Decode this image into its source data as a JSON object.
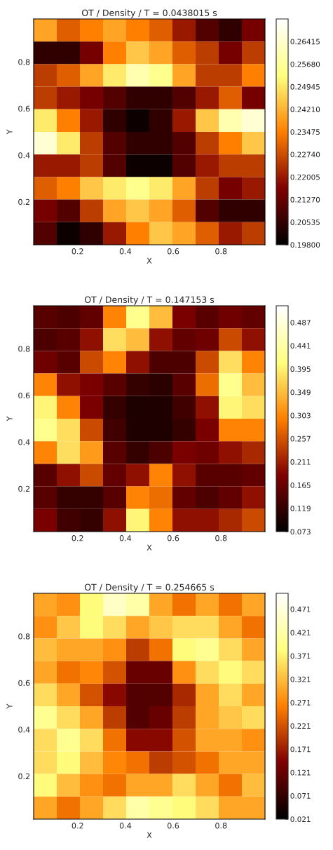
{
  "chart_data": [
    {
      "type": "heatmap",
      "title": "OT / Density / T = 0.0438015 s",
      "xlabel": "X",
      "ylabel": "Y",
      "x": [
        0.0644,
        0.1612,
        0.258,
        0.3548,
        0.4516,
        0.5484,
        0.6452,
        0.742,
        0.8388,
        0.9356
      ],
      "y": [
        0.9356,
        0.8388,
        0.742,
        0.6452,
        0.5484,
        0.4516,
        0.3548,
        0.258,
        0.1612,
        0.0644
      ],
      "xlim": [
        0.016,
        0.984
      ],
      "ylim": [
        0.016,
        0.984
      ],
      "xticks": [
        0.2,
        0.4,
        0.6,
        0.8
      ],
      "yticks": [
        0.2,
        0.4,
        0.6,
        0.8
      ],
      "clim": [
        0.198,
        0.2715
      ],
      "cticks": [
        {
          "value": 0.198,
          "label": "0.19800"
        },
        {
          "value": 0.20535,
          "label": "0.20535"
        },
        {
          "value": 0.2127,
          "label": "0.21270"
        },
        {
          "value": 0.22005,
          "label": "0.22005"
        },
        {
          "value": 0.2274,
          "label": "0.22740"
        },
        {
          "value": 0.23475,
          "label": "0.23475"
        },
        {
          "value": 0.2421,
          "label": "0.24210"
        },
        {
          "value": 0.24945,
          "label": "0.24945"
        },
        {
          "value": 0.2568,
          "label": "0.25680"
        },
        {
          "value": 0.26415,
          "label": "0.26415"
        }
      ],
      "cells": [
        [
          0.24,
          0.23,
          0.235,
          0.24,
          0.235,
          0.23,
          0.22,
          0.21,
          0.205,
          0.215
        ],
        [
          0.205,
          0.205,
          0.215,
          0.235,
          0.245,
          0.24,
          0.23,
          0.225,
          0.215,
          0.225
        ],
        [
          0.225,
          0.23,
          0.24,
          0.25,
          0.26,
          0.255,
          0.24,
          0.225,
          0.225,
          0.235
        ],
        [
          0.225,
          0.22,
          0.215,
          0.21,
          0.205,
          0.205,
          0.21,
          0.22,
          0.23,
          0.215
        ],
        [
          0.25,
          0.235,
          0.22,
          0.205,
          0.2,
          0.205,
          0.22,
          0.245,
          0.26,
          0.265
        ],
        [
          0.265,
          0.25,
          0.225,
          0.21,
          0.205,
          0.205,
          0.21,
          0.225,
          0.235,
          0.245
        ],
        [
          0.22,
          0.22,
          0.225,
          0.21,
          0.2,
          0.2,
          0.21,
          0.22,
          0.225,
          0.225
        ],
        [
          0.23,
          0.235,
          0.245,
          0.25,
          0.255,
          0.25,
          0.24,
          0.225,
          0.215,
          0.22
        ],
        [
          0.215,
          0.21,
          0.225,
          0.24,
          0.245,
          0.24,
          0.23,
          0.21,
          0.205,
          0.205
        ],
        [
          0.21,
          0.2,
          0.205,
          0.22,
          0.235,
          0.245,
          0.24,
          0.23,
          0.22,
          0.225
        ]
      ]
    },
    {
      "type": "heatmap",
      "title": "OT / Density / T = 0.147153 s",
      "xlabel": "X",
      "ylabel": "Y",
      "x": [
        0.0644,
        0.1612,
        0.258,
        0.3548,
        0.4516,
        0.5484,
        0.6452,
        0.742,
        0.8388,
        0.9356
      ],
      "y": [
        0.9356,
        0.8388,
        0.742,
        0.6452,
        0.5484,
        0.4516,
        0.3548,
        0.258,
        0.1612,
        0.0644
      ],
      "xlim": [
        0.016,
        0.984
      ],
      "ylim": [
        0.016,
        0.984
      ],
      "xticks": [
        0.2,
        0.4,
        0.6,
        0.8
      ],
      "yticks": [
        0.2,
        0.4,
        0.6,
        0.8
      ],
      "clim": [
        0.073,
        0.52
      ],
      "cticks": [
        0.073,
        0.119,
        0.165,
        0.211,
        0.257,
        0.303,
        0.349,
        0.395,
        0.441,
        0.487
      ],
      "cells": [
        [
          0.15,
          0.14,
          0.16,
          0.3,
          0.42,
          0.35,
          0.18,
          0.15,
          0.17,
          0.16
        ],
        [
          0.14,
          0.15,
          0.2,
          0.38,
          0.35,
          0.2,
          0.16,
          0.17,
          0.25,
          0.2
        ],
        [
          0.17,
          0.15,
          0.25,
          0.3,
          0.2,
          0.14,
          0.14,
          0.25,
          0.38,
          0.3
        ],
        [
          0.3,
          0.2,
          0.18,
          0.15,
          0.12,
          0.11,
          0.15,
          0.28,
          0.42,
          0.35
        ],
        [
          0.4,
          0.3,
          0.18,
          0.12,
          0.1,
          0.1,
          0.13,
          0.2,
          0.4,
          0.38
        ],
        [
          0.42,
          0.38,
          0.25,
          0.13,
          0.1,
          0.1,
          0.12,
          0.18,
          0.3,
          0.3
        ],
        [
          0.3,
          0.38,
          0.32,
          0.15,
          0.12,
          0.14,
          0.18,
          0.17,
          0.2,
          0.22
        ],
        [
          0.15,
          0.2,
          0.25,
          0.16,
          0.2,
          0.3,
          0.2,
          0.15,
          0.15,
          0.16
        ],
        [
          0.15,
          0.12,
          0.12,
          0.15,
          0.3,
          0.28,
          0.16,
          0.14,
          0.16,
          0.2
        ],
        [
          0.18,
          0.13,
          0.12,
          0.2,
          0.4,
          0.3,
          0.2,
          0.2,
          0.22,
          0.25
        ]
      ]
    },
    {
      "type": "heatmap",
      "title": "OT / Density / T = 0.254665 s",
      "xlabel": "X",
      "ylabel": "Y",
      "x": [
        0.0644,
        0.1612,
        0.258,
        0.3548,
        0.4516,
        0.5484,
        0.6452,
        0.742,
        0.8388,
        0.9356
      ],
      "y": [
        0.9356,
        0.8388,
        0.742,
        0.6452,
        0.5484,
        0.4516,
        0.3548,
        0.258,
        0.1612,
        0.0644
      ],
      "xlim": [
        0.016,
        0.984
      ],
      "ylim": [
        0.016,
        0.984
      ],
      "xticks": [
        0.2,
        0.4,
        0.6,
        0.8
      ],
      "yticks": [
        0.2,
        0.4,
        0.6,
        0.8
      ],
      "clim": [
        0.021,
        0.505
      ],
      "cticks": [
        0.021,
        0.071,
        0.121,
        0.171,
        0.221,
        0.271,
        0.321,
        0.371,
        0.421,
        0.471
      ],
      "cells": [
        [
          0.3,
          0.28,
          0.38,
          0.45,
          0.42,
          0.3,
          0.25,
          0.3,
          0.25,
          0.3
        ],
        [
          0.28,
          0.33,
          0.38,
          0.35,
          0.3,
          0.33,
          0.35,
          0.35,
          0.3,
          0.25
        ],
        [
          0.32,
          0.3,
          0.3,
          0.28,
          0.2,
          0.25,
          0.38,
          0.4,
          0.35,
          0.3
        ],
        [
          0.3,
          0.25,
          0.27,
          0.22,
          0.12,
          0.12,
          0.28,
          0.35,
          0.38,
          0.35
        ],
        [
          0.35,
          0.3,
          0.22,
          0.15,
          0.1,
          0.1,
          0.18,
          0.3,
          0.35,
          0.3
        ],
        [
          0.4,
          0.35,
          0.3,
          0.2,
          0.1,
          0.12,
          0.2,
          0.3,
          0.33,
          0.35
        ],
        [
          0.35,
          0.4,
          0.35,
          0.25,
          0.15,
          0.15,
          0.22,
          0.3,
          0.3,
          0.28
        ],
        [
          0.35,
          0.38,
          0.32,
          0.27,
          0.25,
          0.2,
          0.22,
          0.25,
          0.3,
          0.3
        ],
        [
          0.38,
          0.32,
          0.28,
          0.25,
          0.3,
          0.3,
          0.35,
          0.3,
          0.25,
          0.32
        ],
        [
          0.3,
          0.25,
          0.3,
          0.35,
          0.42,
          0.4,
          0.38,
          0.35,
          0.3,
          0.3
        ]
      ]
    }
  ]
}
